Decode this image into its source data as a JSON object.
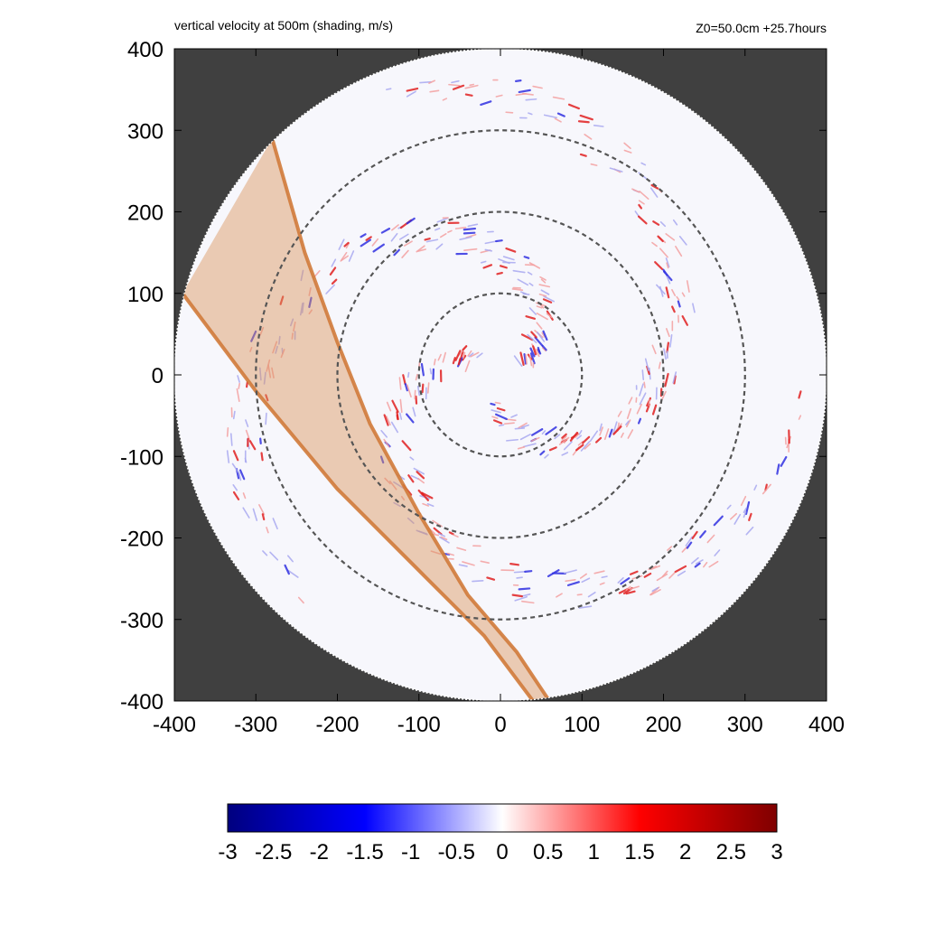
{
  "header": {
    "title": "vertical velocity at 500m (shading, m/s)",
    "info": "Z0=50.0cm  +25.7hours"
  },
  "chart_data": {
    "type": "heatmap",
    "title": "vertical velocity at 500m (shading, m/s)",
    "annotation": "Z0=50.0cm  +25.7hours",
    "xlim": [
      -400,
      400
    ],
    "ylim": [
      -400,
      400
    ],
    "xticks": [
      "-400",
      "-300",
      "-200",
      "-100",
      "0",
      "100",
      "200",
      "300",
      "400"
    ],
    "yticks": [
      "400",
      "300",
      "200",
      "100",
      "0",
      "-100",
      "-200",
      "-300",
      "-400"
    ],
    "domain_radius": 400,
    "reference_circle_radii": [
      100,
      200,
      300
    ],
    "shaded_band": {
      "left_edge": [
        [
          -390,
          100
        ],
        [
          -300,
          -20
        ],
        [
          -200,
          -140
        ],
        [
          -100,
          -240
        ],
        [
          -20,
          -320
        ],
        [
          40,
          -400
        ]
      ],
      "right_edge": [
        [
          -280,
          290
        ],
        [
          -240,
          150
        ],
        [
          -200,
          40
        ],
        [
          -160,
          -60
        ],
        [
          -100,
          -170
        ],
        [
          -40,
          -270
        ],
        [
          20,
          -340
        ],
        [
          60,
          -400
        ]
      ],
      "color": "#d9925a"
    },
    "colorbar": {
      "range": [
        -3,
        3
      ],
      "ticks": [
        "-3",
        "-2.5",
        "-2",
        "-1.5",
        "-1",
        "-0.5",
        "0",
        "0.5",
        "1",
        "1.5",
        "2",
        "2.5",
        "3"
      ],
      "colors": [
        "#00007f",
        "#0000ff",
        "#ffffff",
        "#ff0000",
        "#7f0000"
      ]
    },
    "background_color": "#404040",
    "grid": false
  }
}
